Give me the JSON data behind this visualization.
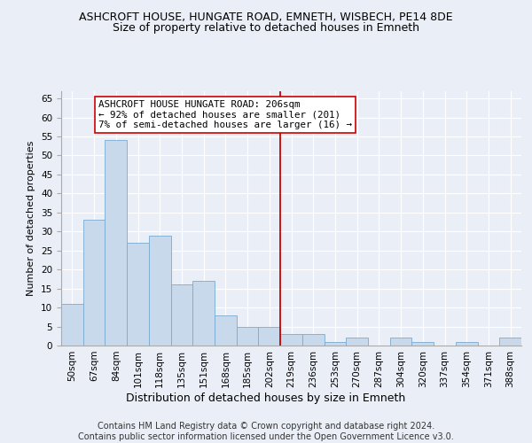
{
  "title": "ASHCROFT HOUSE, HUNGATE ROAD, EMNETH, WISBECH, PE14 8DE",
  "subtitle": "Size of property relative to detached houses in Emneth",
  "xlabel": "Distribution of detached houses by size in Emneth",
  "ylabel": "Number of detached properties",
  "categories": [
    "50sqm",
    "67sqm",
    "84sqm",
    "101sqm",
    "118sqm",
    "135sqm",
    "151sqm",
    "168sqm",
    "185sqm",
    "202sqm",
    "219sqm",
    "236sqm",
    "253sqm",
    "270sqm",
    "287sqm",
    "304sqm",
    "320sqm",
    "337sqm",
    "354sqm",
    "371sqm",
    "388sqm"
  ],
  "values": [
    11,
    33,
    54,
    27,
    29,
    16,
    17,
    8,
    5,
    5,
    3,
    3,
    1,
    2,
    0,
    2,
    1,
    0,
    1,
    0,
    2
  ],
  "bar_color": "#c9d9ec",
  "bar_edge_color": "#7aaacf",
  "vline_x": 9.5,
  "vline_color": "#cc0000",
  "annotation_text": "ASHCROFT HOUSE HUNGATE ROAD: 206sqm\n← 92% of detached houses are smaller (201)\n7% of semi-detached houses are larger (16) →",
  "annotation_box_color": "white",
  "annotation_box_edge": "#cc0000",
  "ylim": [
    0,
    67
  ],
  "yticks": [
    0,
    5,
    10,
    15,
    20,
    25,
    30,
    35,
    40,
    45,
    50,
    55,
    60,
    65
  ],
  "footer_line1": "Contains HM Land Registry data © Crown copyright and database right 2024.",
  "footer_line2": "Contains public sector information licensed under the Open Government Licence v3.0.",
  "bg_color": "#eaeff7",
  "plot_bg_color": "#eaeff7",
  "title_fontsize": 9,
  "subtitle_fontsize": 9,
  "xlabel_fontsize": 9,
  "ylabel_fontsize": 8,
  "tick_fontsize": 7.5,
  "annotation_fontsize": 7.8,
  "footer_fontsize": 7
}
